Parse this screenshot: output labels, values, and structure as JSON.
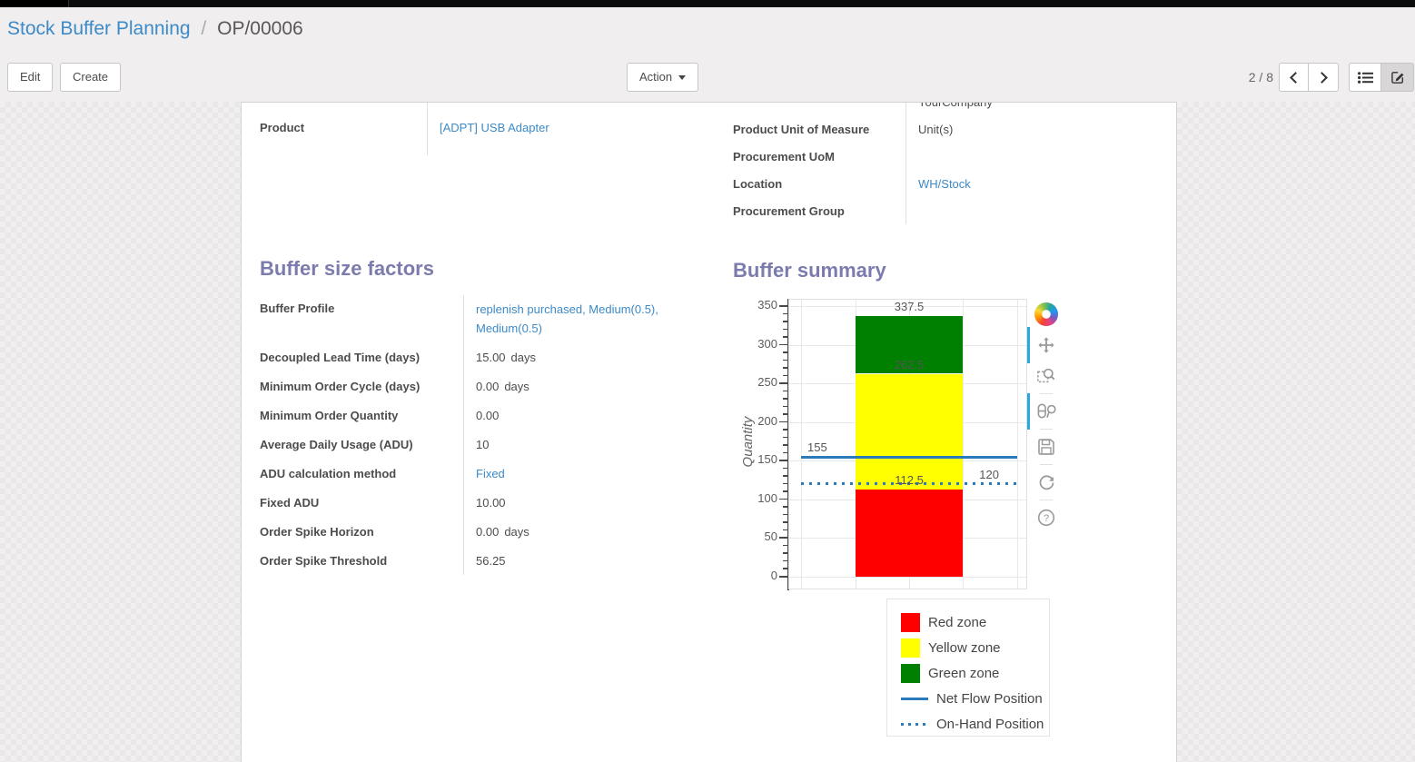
{
  "breadcrumb": {
    "parent": "Stock Buffer Planning",
    "separator": "/",
    "current": "OP/00006"
  },
  "control_panel": {
    "edit_label": "Edit",
    "create_label": "Create",
    "action_label": "Action",
    "pager": "2 / 8"
  },
  "form": {
    "left_fields": [
      {
        "label": "Product",
        "value": "[ADPT] USB Adapter",
        "link": true
      }
    ],
    "right_fields": [
      {
        "label": "",
        "value": "YourCompany",
        "link": false,
        "clipped": true
      },
      {
        "label": "Product Unit of Measure",
        "value": "Unit(s)",
        "link": false
      },
      {
        "label": "Procurement UoM",
        "value": "",
        "link": false
      },
      {
        "label": "Location",
        "value": "WH/Stock",
        "link": true
      },
      {
        "label": "Procurement Group",
        "value": "",
        "link": false
      }
    ],
    "factors_section": {
      "title": "Buffer size factors",
      "fields": [
        {
          "label": "Buffer Profile",
          "value": "replenish purchased, Medium(0.5), Medium(0.5)",
          "link": true,
          "tall": true
        },
        {
          "label": "Decoupled Lead Time (days)",
          "value": "15.00",
          "unit": "days"
        },
        {
          "label": "Minimum Order Cycle (days)",
          "value": "0.00",
          "unit": "days"
        },
        {
          "label": "Minimum Order Quantity",
          "value": "0.00"
        },
        {
          "label": "Average Daily Usage (ADU)",
          "value": "10"
        },
        {
          "label": "ADU calculation method",
          "value": "Fixed",
          "link": true
        },
        {
          "label": "Fixed ADU",
          "value": "10.00"
        },
        {
          "label": "Order Spike Horizon",
          "value": "0.00",
          "unit": "days"
        },
        {
          "label": "Order Spike Threshold",
          "value": "56.25"
        }
      ]
    },
    "summary_section": {
      "title": "Buffer summary"
    }
  },
  "chart_data": {
    "type": "bar",
    "title": "Buffer summary",
    "xlabel": "",
    "ylabel": "Quantity",
    "ylim": [
      0,
      350
    ],
    "y_major_step": 50,
    "y_minor_step": 10,
    "y_ticks": [
      0,
      50,
      100,
      150,
      200,
      250,
      300,
      350
    ],
    "grid": true,
    "zones": [
      {
        "name": "Red zone",
        "from": 0,
        "to": 112.5,
        "color": "#ff0000"
      },
      {
        "name": "Yellow zone",
        "from": 112.5,
        "to": 262.5,
        "color": "#ffff00"
      },
      {
        "name": "Green zone",
        "from": 262.5,
        "to": 337.5,
        "color": "#008000"
      }
    ],
    "lines": [
      {
        "name": "Net Flow Position",
        "value": 155,
        "style": "solid",
        "color": "#2b7bba"
      },
      {
        "name": "On-Hand Position",
        "value": 120,
        "style": "dotted",
        "color": "#2b7bba"
      }
    ],
    "annotations": [
      {
        "text": "337.5",
        "y": 337.5,
        "align": "center"
      },
      {
        "text": "262.5",
        "y": 262.5,
        "align": "center"
      },
      {
        "text": "155",
        "y": 155,
        "align": "left"
      },
      {
        "text": "112.5",
        "y": 112.5,
        "align": "center"
      },
      {
        "text": "120",
        "y": 120,
        "align": "right"
      }
    ],
    "legend_position": "below",
    "legend": [
      {
        "label": "Red zone",
        "swatch": "square",
        "color": "#ff0000"
      },
      {
        "label": "Yellow zone",
        "swatch": "square",
        "color": "#ffff00"
      },
      {
        "label": "Green zone",
        "swatch": "square",
        "color": "#008000"
      },
      {
        "label": "Net Flow Position",
        "swatch": "line",
        "color": "#2b7bba"
      },
      {
        "label": "On-Hand Position",
        "swatch": "dotted",
        "color": "#2b7bba"
      }
    ]
  },
  "chart_toolbar": {
    "icons": [
      "bokeh-logo",
      "pan",
      "box-zoom",
      "hover",
      "save",
      "reset",
      "help"
    ],
    "active": [
      "pan",
      "hover"
    ],
    "accent_color": "#2da7df"
  },
  "colors": {
    "heading": "#7c7bad",
    "link": "#3c8ac8",
    "red_zone": "#ff0000",
    "yellow_zone": "#ffff00",
    "green_zone": "#008000",
    "flow_line": "#2b7bba"
  }
}
